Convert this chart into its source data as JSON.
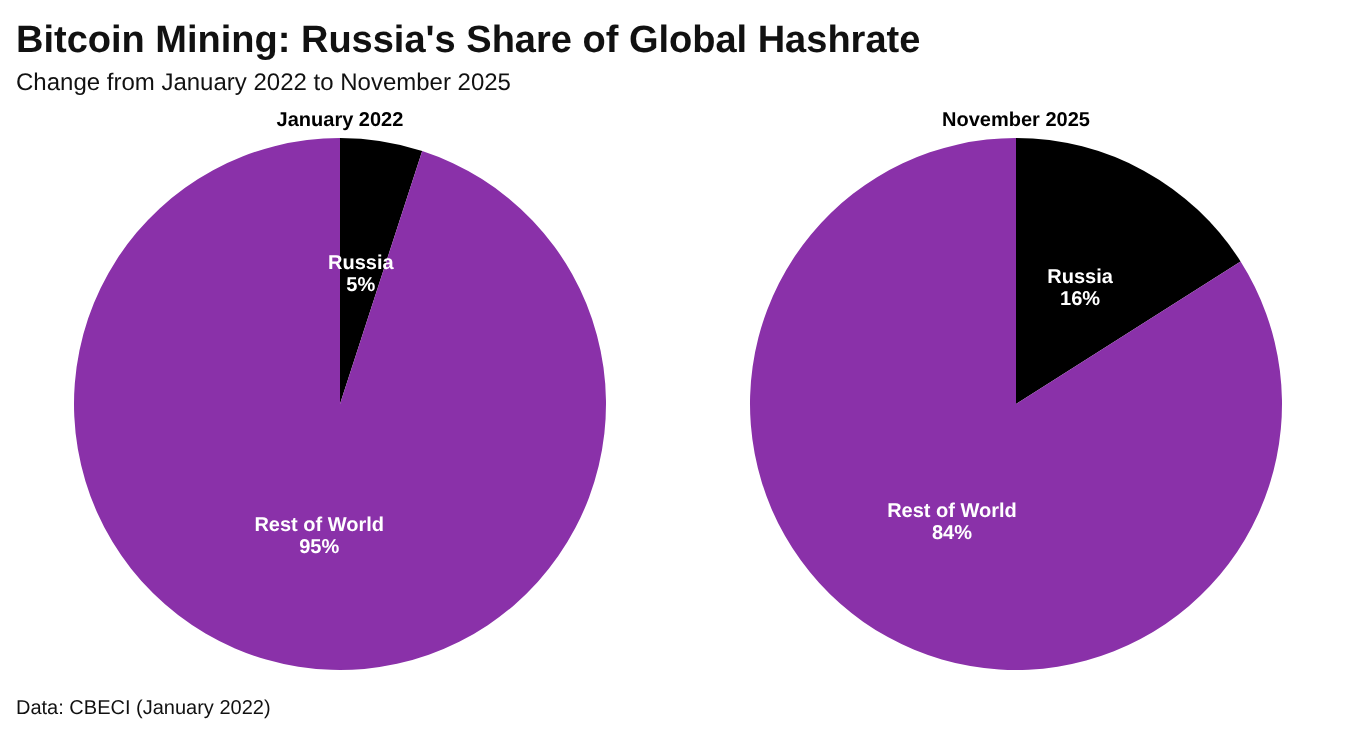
{
  "chart_data": [
    {
      "type": "pie",
      "title": "January 2022",
      "categories": [
        "Russia",
        "Rest of World"
      ],
      "values": [
        5,
        95
      ],
      "colors": [
        "#000000",
        "#8a31a9"
      ],
      "value_labels": [
        "5%",
        "95%"
      ],
      "annotations": [
        "Bitcoin Mining: Russia's Share of Global Hashrate",
        "Change from January 2022 to November 2025",
        "Data: CBECI (January 2022)"
      ]
    },
    {
      "type": "pie",
      "title": "November 2025",
      "categories": [
        "Russia",
        "Rest of World"
      ],
      "values": [
        16,
        84
      ],
      "colors": [
        "#000000",
        "#8a31a9"
      ],
      "value_labels": [
        "16%",
        "84%"
      ]
    }
  ]
}
